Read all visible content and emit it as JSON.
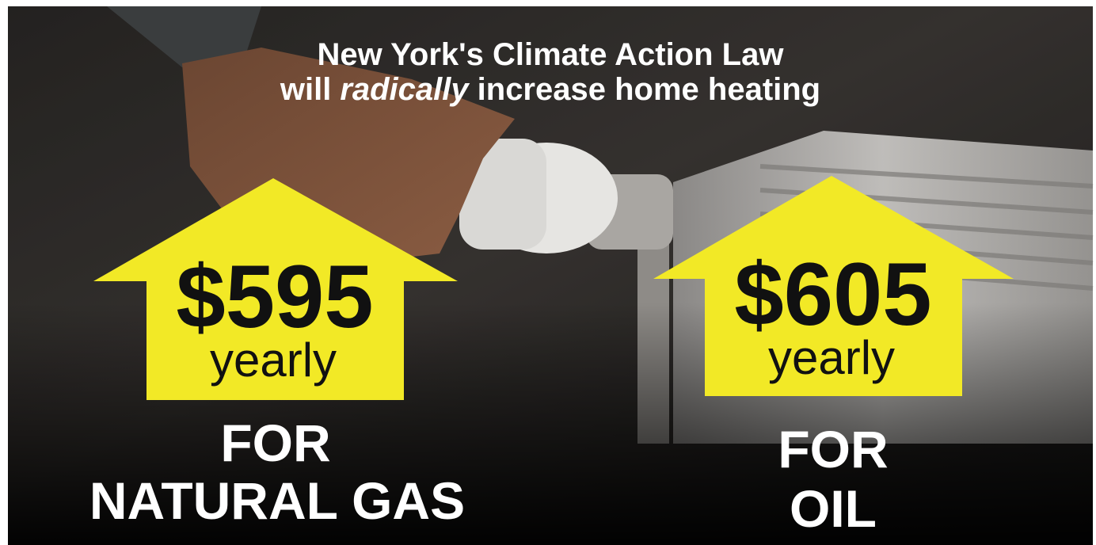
{
  "headline": {
    "line1": "New York's Climate Action Law",
    "line2_start": "will",
    "line2_emphasis": "radically",
    "line2_end": "increase home heating"
  },
  "callouts": [
    {
      "amount": "$595",
      "period": "yearly",
      "label_line1": "FOR",
      "label_line2": "NATURAL GAS"
    },
    {
      "amount": "$605",
      "period": "yearly",
      "label_line1": "FOR",
      "label_line2": "OIL"
    }
  ]
}
